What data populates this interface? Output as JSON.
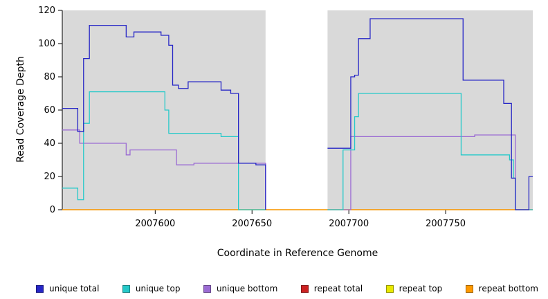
{
  "figure": {
    "background": "#ffffff",
    "plot_background": "#d9d9d9"
  },
  "axes": {
    "x_label": "Coordinate in Reference Genome",
    "y_label": "Read Coverage Depth",
    "x_ticks": [
      2007600,
      2007650,
      2007700,
      2007750
    ],
    "y_ticks": [
      0,
      20,
      40,
      60,
      80,
      100,
      120
    ],
    "xlim": [
      2007552,
      2007795
    ],
    "ylim": [
      0,
      120
    ]
  },
  "chart_data": {
    "type": "line",
    "step": true,
    "title": "",
    "xlabel": "Coordinate in Reference Genome",
    "ylabel": "Read Coverage Depth",
    "xlim": [
      2007552,
      2007795
    ],
    "ylim": [
      0,
      120
    ],
    "grid": false,
    "legend_position": "bottom",
    "data_regions": [
      [
        2007552,
        2007657
      ],
      [
        2007689,
        2007795
      ]
    ],
    "gap_region": [
      2007657,
      2007689
    ],
    "series": [
      {
        "name": "repeat total",
        "color": "#cc2222",
        "segments": [
          [
            [
              2007552,
              0
            ],
            [
              2007795,
              0
            ]
          ]
        ]
      },
      {
        "name": "repeat top",
        "color": "#e8e800",
        "segments": [
          [
            [
              2007552,
              0
            ],
            [
              2007795,
              0
            ]
          ]
        ]
      },
      {
        "name": "repeat bottom",
        "color": "#ff9900",
        "segments": [
          [
            [
              2007552,
              0
            ],
            [
              2007795,
              0
            ]
          ]
        ]
      },
      {
        "name": "unique bottom",
        "color": "#9b6bd3",
        "segments": [
          [
            [
              2007552,
              48
            ],
            [
              2007561,
              40
            ],
            [
              2007584,
              40
            ],
            [
              2007585,
              33
            ],
            [
              2007587,
              36
            ],
            [
              2007609,
              36
            ],
            [
              2007611,
              27
            ],
            [
              2007620,
              28
            ],
            [
              2007656,
              28
            ],
            [
              2007657,
              0
            ]
          ],
          [
            [
              2007689,
              0
            ],
            [
              2007701,
              44
            ],
            [
              2007763,
              44
            ],
            [
              2007765,
              45
            ],
            [
              2007784,
              45
            ],
            [
              2007786,
              0
            ],
            [
              2007795,
              0
            ]
          ]
        ]
      },
      {
        "name": "unique top",
        "color": "#25c9c9",
        "segments": [
          [
            [
              2007552,
              13
            ],
            [
              2007560,
              6
            ],
            [
              2007563,
              52
            ],
            [
              2007566,
              71
            ],
            [
              2007605,
              60
            ],
            [
              2007607,
              46
            ],
            [
              2007634,
              44
            ],
            [
              2007643,
              0
            ],
            [
              2007657,
              0
            ]
          ],
          [
            [
              2007689,
              0
            ],
            [
              2007697,
              36
            ],
            [
              2007703,
              56
            ],
            [
              2007705,
              70
            ],
            [
              2007756,
              70
            ],
            [
              2007758,
              33
            ],
            [
              2007783,
              30
            ],
            [
              2007785,
              19
            ],
            [
              2007786,
              0
            ],
            [
              2007795,
              0
            ]
          ]
        ]
      },
      {
        "name": "unique total",
        "color": "#2626c6",
        "segments": [
          [
            [
              2007552,
              61
            ],
            [
              2007560,
              47
            ],
            [
              2007563,
              91
            ],
            [
              2007566,
              111
            ],
            [
              2007585,
              104
            ],
            [
              2007589,
              107
            ],
            [
              2007603,
              105
            ],
            [
              2007607,
              99
            ],
            [
              2007609,
              75
            ],
            [
              2007612,
              73
            ],
            [
              2007617,
              77
            ],
            [
              2007634,
              72
            ],
            [
              2007639,
              70
            ],
            [
              2007643,
              28
            ],
            [
              2007652,
              27
            ],
            [
              2007657,
              0
            ]
          ],
          [
            [
              2007689,
              37
            ],
            [
              2007701,
              80
            ],
            [
              2007703,
              81
            ],
            [
              2007705,
              103
            ],
            [
              2007711,
              115
            ],
            [
              2007757,
              115
            ],
            [
              2007759,
              78
            ],
            [
              2007779,
              78
            ],
            [
              2007780,
              64
            ],
            [
              2007784,
              19
            ],
            [
              2007786,
              0
            ],
            [
              2007792,
              0
            ],
            [
              2007793,
              20
            ],
            [
              2007795,
              20
            ]
          ]
        ]
      }
    ]
  },
  "legend": [
    {
      "label": "unique total",
      "color": "#2626c6"
    },
    {
      "label": "unique top",
      "color": "#25c9c9"
    },
    {
      "label": "unique bottom",
      "color": "#9b6bd3"
    },
    {
      "label": "repeat total",
      "color": "#cc2222"
    },
    {
      "label": "repeat top",
      "color": "#e8e800"
    },
    {
      "label": "repeat bottom",
      "color": "#ff9900"
    }
  ]
}
